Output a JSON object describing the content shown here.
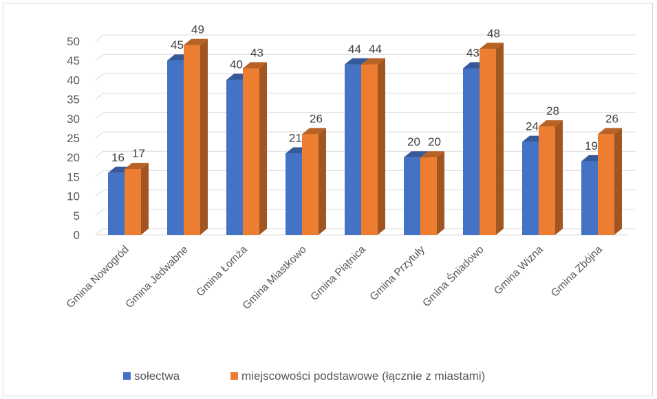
{
  "chart_data": {
    "type": "bar",
    "categories": [
      "Gmina Nowogród",
      "Gmina Jedwabne",
      "Gmina Łomża",
      "Gmina Miastkowo",
      "Gmina Piątnica",
      "Gmina Przytuły",
      "Gmina Śniadowo",
      "Gmina Wizna",
      "Gmina Zbójna"
    ],
    "series": [
      {
        "name": "sołectwa",
        "values": [
          16,
          45,
          40,
          21,
          44,
          20,
          43,
          24,
          19
        ],
        "color": "#4472C4"
      },
      {
        "name": "miejscowości podstawowe (łącznie z miastami)",
        "values": [
          17,
          49,
          43,
          26,
          44,
          20,
          48,
          28,
          26
        ],
        "color": "#ED7D31"
      }
    ],
    "yticks": [
      "0",
      "5",
      "10",
      "15",
      "20",
      "25",
      "30",
      "35",
      "40",
      "45",
      "50"
    ],
    "ylim": [
      0,
      50
    ],
    "title": "",
    "xlabel": "",
    "ylabel": "",
    "grid": true,
    "legend_position": "bottom",
    "style": "3d-clustered-column"
  }
}
